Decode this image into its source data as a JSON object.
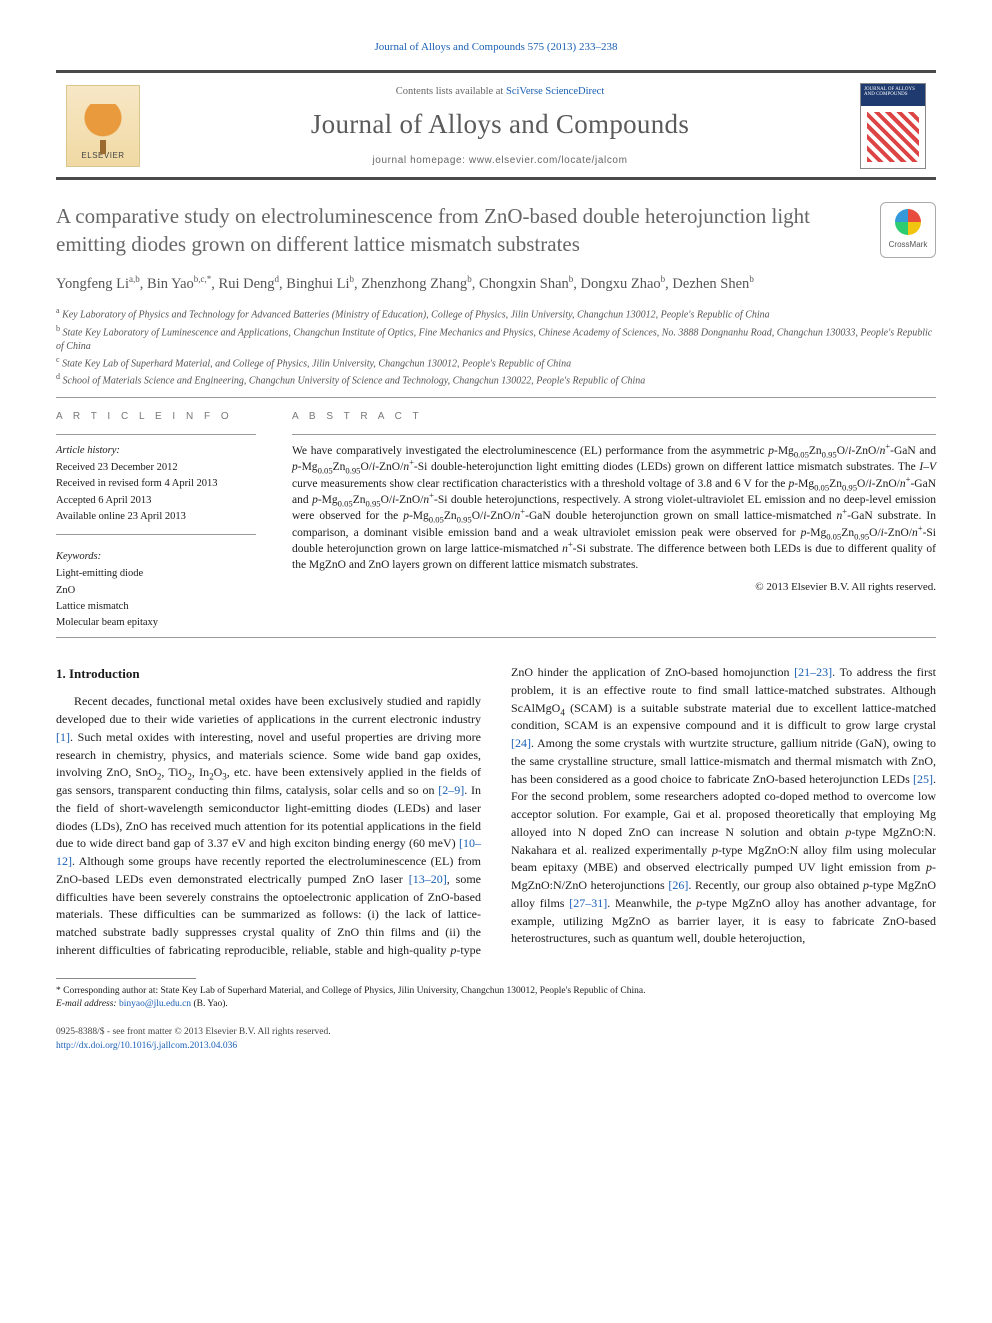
{
  "citation_line": "Journal of Alloys and Compounds 575 (2013) 233–238",
  "header": {
    "publisher": "ELSEVIER",
    "contents_prefix": "Contents lists available at ",
    "contents_link": "SciVerse ScienceDirect",
    "journal_title": "Journal of Alloys and Compounds",
    "homepage_prefix": "journal homepage: ",
    "homepage_url": "www.elsevier.com/locate/jalcom",
    "cover_title": "JOURNAL OF ALLOYS AND COMPOUNDS"
  },
  "crossmark_label": "CrossMark",
  "title": "A comparative study on electroluminescence from ZnO-based double heterojunction light emitting diodes grown on different lattice mismatch substrates",
  "authors_html": "Yongfeng Li<sup>a,b</sup>, Bin Yao<sup>b,c,*</sup>, Rui Deng<sup>d</sup>, Binghui Li<sup>b</sup>, Zhenzhong Zhang<sup>b</sup>, Chongxin Shan<sup>b</sup>, Dongxu Zhao<sup>b</sup>, Dezhen Shen<sup>b</sup>",
  "affiliations": {
    "a": "Key Laboratory of Physics and Technology for Advanced Batteries (Ministry of Education), College of Physics, Jilin University, Changchun 130012, People's Republic of China",
    "b": "State Key Laboratory of Luminescence and Applications, Changchun Institute of Optics, Fine Mechanics and Physics, Chinese Academy of Sciences, No. 3888 Dongnanhu Road, Changchun 130033, People's Republic of China",
    "c": "State Key Lab of Superhard Material, and College of Physics, Jilin University, Changchun 130012, People's Republic of China",
    "d": "School of Materials Science and Engineering, Changchun University of Science and Technology, Changchun 130022, People's Republic of China"
  },
  "article_info": {
    "section_label": "A R T I C L E   I N F O",
    "history_label": "Article history:",
    "history": [
      "Received 23 December 2012",
      "Received in revised form 4 April 2013",
      "Accepted 6 April 2013",
      "Available online 23 April 2013"
    ],
    "keywords_label": "Keywords:",
    "keywords": [
      "Light-emitting diode",
      "ZnO",
      "Lattice mismatch",
      "Molecular beam epitaxy"
    ]
  },
  "abstract": {
    "section_label": "A B S T R A C T",
    "text_html": "We have comparatively investigated the electroluminescence (EL) performance from the asymmetric <em>p</em>-Mg<sub>0.05</sub>Zn<sub>0.95</sub>O/<em>i</em>-ZnO/<em>n</em><sup>+</sup>-GaN and <em>p</em>-Mg<sub>0.05</sub>Zn<sub>0.95</sub>O/<em>i</em>-ZnO/<em>n</em><sup>+</sup>-Si double-heterojunction light emitting diodes (LEDs) grown on different lattice mismatch substrates. The <em>I–V</em> curve measurements show clear rectification characteristics with a threshold voltage of 3.8 and 6 V for the <em>p</em>-Mg<sub>0.05</sub>Zn<sub>0.95</sub>O/<em>i</em>-ZnO/<em>n</em><sup>+</sup>-GaN and <em>p</em>-Mg<sub>0.05</sub>Zn<sub>0.95</sub>O/<em>i</em>-ZnO/<em>n</em><sup>+</sup>-Si double heterojunctions, respectively. A strong violet-ultraviolet EL emission and no deep-level emission were observed for the <em>p</em>-Mg<sub>0.05</sub>Zn<sub>0.95</sub>O/<em>i</em>-ZnO/<em>n</em><sup>+</sup>-GaN double heterojunction grown on small lattice-mismatched <em>n</em><sup>+</sup>-GaN substrate. In comparison, a dominant visible emission band and a weak ultraviolet emission peak were observed for <em>p</em>-Mg<sub>0.05</sub>Zn<sub>0.95</sub>O/<em>i</em>-ZnO/<em>n</em><sup>+</sup>-Si double heterojunction grown on large lattice-mismatched <em>n</em><sup>+</sup>-Si substrate. The difference between both LEDs is due to different quality of the MgZnO and ZnO layers grown on different lattice mismatch substrates.",
    "copyright": "© 2013 Elsevier B.V. All rights reserved."
  },
  "body": {
    "section_heading": "1. Introduction",
    "paragraph_html": "Recent decades, functional metal oxides have been exclusively studied and rapidly developed due to their wide varieties of applications in the current electronic industry <a class='ref' href='#'>[1]</a>. Such metal oxides with interesting, novel and useful properties are driving more research in chemistry, physics, and materials science. Some wide band gap oxides, involving ZnO, SnO<sub>2</sub>, TiO<sub>2</sub>, In<sub>2</sub>O<sub>3</sub>, etc. have been extensively applied in the fields of gas sensors, transparent conducting thin films, catalysis, solar cells and so on <a class='ref' href='#'>[2–9]</a>. In the field of short-wavelength semiconductor light-emitting diodes (LEDs) and laser diodes (LDs), ZnO has received much attention for its potential applications in the field due to wide direct band gap of 3.37 eV and high exciton binding energy (60 meV) <a class='ref' href='#'>[10–12]</a>. Although some groups have recently reported the electroluminescence (EL) from ZnO-based LEDs even demonstrated electrically pumped ZnO laser <a class='ref' href='#'>[13–20]</a>, some difficulties have been severely constrains the optoelectronic application of ZnO-based materials. These difficulties can be summarized as follows: (i) the lack of lattice-matched substrate badly suppresses crystal quality of ZnO thin films and (ii) the inherent difficulties of fabricating reproducible, reliable, stable and high-quality <em>p</em>-type ZnO hinder the application of ZnO-based homojunction <a class='ref' href='#'>[21–23]</a>. To address the first problem, it is an effective route to find small lattice-matched substrates. Although ScAlMgO<sub>4</sub> (SCAM) is a suitable substrate material due to excellent lattice-matched condition, SCAM is an expensive compound and it is difficult to grow large crystal <a class='ref' href='#'>[24]</a>. Among the some crystals with wurtzite structure, gallium nitride (GaN), owing to the same crystalline structure, small lattice-mismatch and thermal mismatch with ZnO, has been considered as a good choice to fabricate ZnO-based heterojunction LEDs <a class='ref' href='#'>[25]</a>. For the second problem, some researchers adopted co-doped method to overcome low acceptor solution. For example, Gai et al. proposed theoretically that employing Mg alloyed into N doped ZnO can increase N solution and obtain <em>p</em>-type MgZnO:N. Nakahara et al. realized experimentally <em>p</em>-type MgZnO:N alloy film using molecular beam epitaxy (MBE) and observed electrically pumped UV light emission from <em>p</em>-MgZnO:N/ZnO heterojunctions <a class='ref' href='#'>[26]</a>. Recently, our group also obtained <em>p</em>-type MgZnO alloy films <a class='ref' href='#'>[27–31]</a>. Meanwhile, the <em>p</em>-type MgZnO alloy has another advantage, for example, utilizing MgZnO as barrier layer, it is easy to fabricate ZnO-based heterostructures, such as quantum well, double heterojuction,"
  },
  "footnote": {
    "corr_html": "* Corresponding author at: State Key Lab of Superhard Material, and College of Physics, Jilin University, Changchun 130012, People's Republic of China.",
    "email_label": "E-mail address:",
    "email": "binyao@jlu.edu.cn",
    "email_suffix": "(B. Yao)."
  },
  "bottom": {
    "issn_line": "0925-8388/$ - see front matter © 2013 Elsevier B.V. All rights reserved.",
    "doi": "http://dx.doi.org/10.1016/j.jallcom.2013.04.036"
  },
  "colors": {
    "link": "#1a5fb4",
    "rule": "#4a4a4a",
    "muted": "#666666",
    "text": "#1a1a1a"
  },
  "typography": {
    "body_pt": 12,
    "title_pt": 21,
    "journal_title_pt": 27,
    "authors_pt": 14.5,
    "abstract_pt": 11.5,
    "footnote_pt": 9.5
  }
}
